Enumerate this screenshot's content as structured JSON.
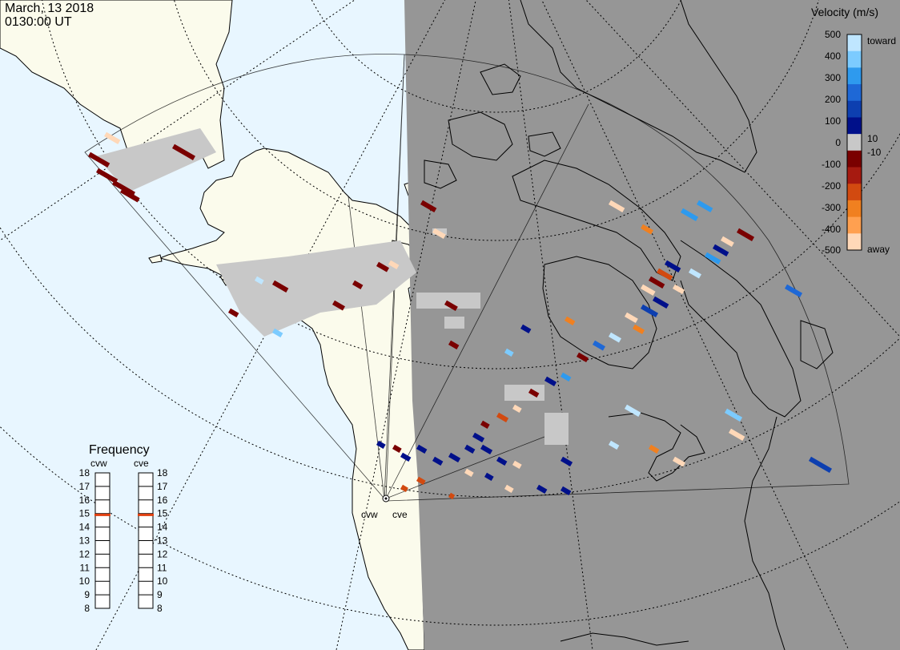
{
  "header": {
    "date": "March, 13 2018",
    "time": "0130:00 UT"
  },
  "colorbar": {
    "title": "Velocity (m/s)",
    "toward_label": "toward",
    "away_label": "away",
    "ticks": [
      "500",
      "400",
      "300",
      "200",
      "100",
      "10",
      "0",
      "-10",
      "-100",
      "-200",
      "-300",
      "-400",
      "-500"
    ],
    "colors": [
      "#bfe6ff",
      "#7ccbff",
      "#2e9aee",
      "#1e68d6",
      "#0d3fb0",
      "#00108a",
      "#c8c8c8",
      "#7a0000",
      "#a61a10",
      "#d24a10",
      "#f08020",
      "#ffa050",
      "#ffd8b8"
    ]
  },
  "frequency": {
    "title": "Frequency",
    "radar_left": "cvw",
    "radar_right": "cve",
    "scale": [
      "18",
      "17",
      "16",
      "15",
      "14",
      "13",
      "12",
      "11",
      "10",
      "9",
      "8"
    ],
    "value_left_mhz": 14.9,
    "value_right_mhz": 14.9,
    "marker_color": "#e04010"
  },
  "radar_sites": {
    "left": "cvw",
    "right": "cve"
  },
  "map": {
    "ocean_color": "#e8f6ff",
    "land_color": "#fbfbec",
    "night_color": "#969696",
    "ground_scatter_color": "#c8c8c8"
  }
}
